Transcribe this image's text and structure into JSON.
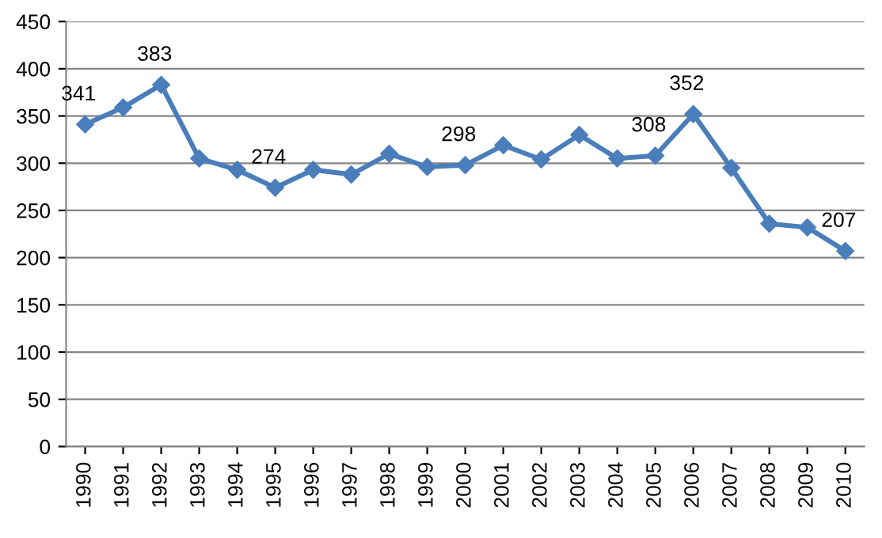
{
  "chart_data": {
    "type": "line",
    "categories": [
      "1990",
      "1991",
      "1992",
      "1993",
      "1994",
      "1995",
      "1996",
      "1997",
      "1998",
      "1999",
      "2000",
      "2001",
      "2002",
      "2003",
      "2004",
      "2005",
      "2006",
      "2007",
      "2008",
      "2009",
      "2010"
    ],
    "series": [
      {
        "color": "#4a7ebb",
        "values": [
          341,
          359,
          383,
          305,
          293,
          274,
          293,
          288,
          310,
          296,
          298,
          319,
          304,
          330,
          305,
          308,
          352,
          295,
          236,
          232,
          207
        ],
        "value_labels": [
          "341",
          null,
          "383",
          null,
          null,
          "274",
          null,
          null,
          null,
          null,
          "298",
          null,
          null,
          null,
          null,
          "308",
          "352",
          null,
          null,
          null,
          "207"
        ]
      }
    ],
    "ylim": [
      0,
      450
    ],
    "yticks": [
      0,
      50,
      100,
      150,
      200,
      250,
      300,
      350,
      400,
      450
    ],
    "grid": "y",
    "marker": "diamond",
    "line_style": "solid"
  }
}
